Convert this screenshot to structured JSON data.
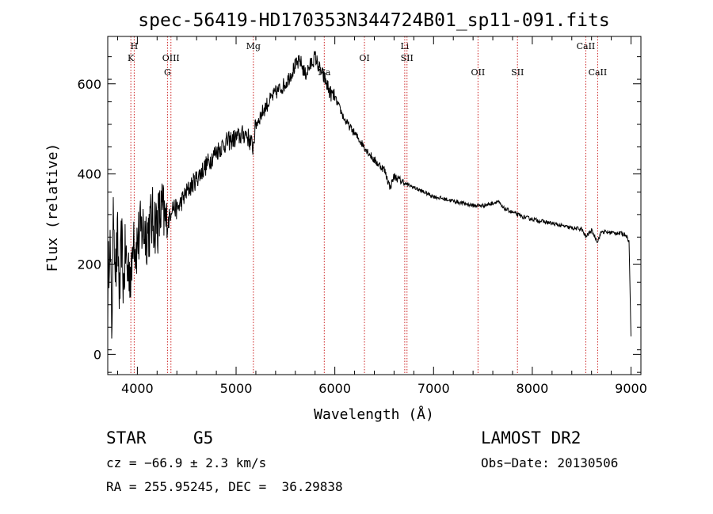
{
  "chart_data": {
    "type": "line",
    "title": "spec-56419-HD170353N344724B01_sp11-091.fits",
    "xlabel": "Wavelength (Å)",
    "ylabel": "Flux (relative)",
    "xlim": [
      3700,
      9100
    ],
    "ylim": [
      -45,
      705
    ],
    "xticks": [
      4000,
      5000,
      6000,
      7000,
      8000,
      9000
    ],
    "yticks": [
      0,
      200,
      400,
      600
    ],
    "grid": false,
    "line_color": "#000000",
    "marker_color": "#cc2222",
    "series": [
      {
        "x": [
          3700,
          3720,
          3740,
          3760,
          3780,
          3800,
          3820,
          3840,
          3860,
          3880,
          3900,
          3920,
          3940,
          3960,
          3980,
          4000,
          4050,
          4100,
          4150,
          4200,
          4250,
          4300,
          4350,
          4400,
          4500,
          4600,
          4700,
          4800,
          4900,
          5000,
          5100,
          5170,
          5200,
          5300,
          5400,
          5500,
          5600,
          5650,
          5700,
          5750,
          5800,
          5850,
          5900,
          5950,
          6000,
          6100,
          6200,
          6300,
          6400,
          6500,
          6560,
          6600,
          6700,
          6800,
          6900,
          7000,
          7100,
          7200,
          7300,
          7400,
          7500,
          7600,
          7650,
          7700,
          7800,
          7900,
          8000,
          8100,
          8200,
          8300,
          8400,
          8500,
          8540,
          8600,
          8660,
          8700,
          8800,
          8900,
          8950,
          8980,
          9000
        ],
        "y": [
          120,
          280,
          60,
          330,
          180,
          250,
          120,
          260,
          150,
          230,
          180,
          200,
          160,
          300,
          230,
          250,
          280,
          270,
          300,
          290,
          320,
          280,
          330,
          320,
          360,
          390,
          420,
          450,
          470,
          480,
          490,
          460,
          510,
          550,
          580,
          600,
          640,
          650,
          620,
          640,
          660,
          630,
          610,
          580,
          570,
          520,
          490,
          460,
          430,
          410,
          370,
          395,
          380,
          370,
          360,
          350,
          345,
          340,
          335,
          330,
          330,
          335,
          340,
          325,
          315,
          305,
          300,
          295,
          290,
          285,
          280,
          278,
          260,
          275,
          250,
          272,
          270,
          268,
          265,
          250,
          40
        ]
      }
    ],
    "lines": [
      {
        "x": 3934,
        "label": "K",
        "row": 2
      },
      {
        "x": 3968,
        "label": "H",
        "row": 1
      },
      {
        "x": 4305,
        "label": "G",
        "row": 3
      },
      {
        "x": 4340,
        "label": "OIII",
        "row": 2
      },
      {
        "x": 5175,
        "label": "Mg",
        "row": 1
      },
      {
        "x": 5893,
        "label": "Na",
        "row": 3
      },
      {
        "x": 6300,
        "label": "OI",
        "row": 2
      },
      {
        "x": 6708,
        "label": "Li",
        "row": 1
      },
      {
        "x": 6731,
        "label": "SII",
        "row": 2
      },
      {
        "x": 7450,
        "label": "OII",
        "row": 3
      },
      {
        "x": 7850,
        "label": "SII",
        "row": 3
      },
      {
        "x": 8542,
        "label": "CaII",
        "row": 1
      },
      {
        "x": 8662,
        "label": "CaII",
        "row": 3
      }
    ]
  },
  "info": {
    "class": "STAR",
    "subclass": "G5",
    "survey": "LAMOST DR2",
    "redshift": "cz = −66.9 ± 2.3 km/s",
    "obs_date": "Obs−Date: 20130506",
    "coords": "RA = 255.95245, DEC =  36.29838"
  }
}
